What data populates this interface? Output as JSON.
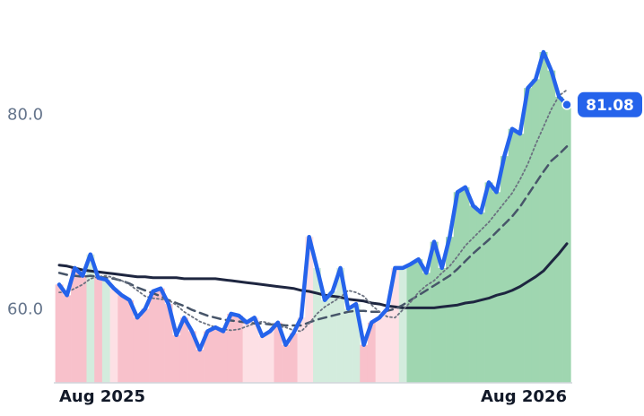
{
  "chart_data": {
    "type": "line",
    "categories": [
      "Aug 2025",
      null,
      null,
      null,
      null,
      null,
      null,
      null,
      null,
      null,
      null,
      null,
      null,
      null,
      null,
      null,
      null,
      null,
      null,
      null,
      null,
      null,
      null,
      null,
      null,
      null,
      null,
      null,
      null,
      null,
      null,
      null,
      null,
      null,
      null,
      null,
      null,
      null,
      null,
      null,
      null,
      null,
      null,
      null,
      null,
      null,
      null,
      null,
      null,
      null,
      null,
      null,
      null,
      null,
      null,
      null,
      null,
      null,
      null,
      null,
      null,
      null,
      null,
      null,
      null,
      "Aug 2026"
    ],
    "ylim": [
      52.5,
      90
    ],
    "yticks": [
      {
        "value": 60,
        "label": "60.0"
      },
      {
        "value": 80,
        "label": "80.0"
      }
    ],
    "band_colors": [
      "#f8c1cb",
      "#f8c1cb",
      "#f8c1cb",
      "#f8c1cb",
      "#d3ecdd",
      "#f8c1cb",
      "#d3ecdd",
      "#fde0e5",
      "#f8c1cb",
      "#f8c1cb",
      "#f8c1cb",
      "#f8c1cb",
      "#f8c1cb",
      "#f8c1cb",
      "#f8c1cb",
      "#f8c1cb",
      "#f8c1cb",
      "#f8c1cb",
      "#f8c1cb",
      "#f8c1cb",
      "#f8c1cb",
      "#f8c1cb",
      "#f8c1cb",
      "#f8c1cb",
      "#fde0e5",
      "#fde0e5",
      "#fde0e5",
      "#fde0e5",
      "#f8c1cb",
      "#f8c1cb",
      "#f8c1cb",
      "#fde0e5",
      "#fde0e5",
      "#d3ecdd",
      "#d3ecdd",
      "#d3ecdd",
      "#d3ecdd",
      "#d3ecdd",
      "#d3ecdd",
      "#f8c1cb",
      "#f8c1cb",
      "#fde0e5",
      "#fde0e5",
      "#fde0e5",
      "#d3ecdd",
      "#9fd6b0",
      "#9fd6b0",
      "#9fd6b0",
      "#9fd6b0",
      "#9fd6b0",
      "#9fd6b0",
      "#9fd6b0",
      "#9fd6b0",
      "#9fd6b0",
      "#9fd6b0",
      "#9fd6b0",
      "#9fd6b0",
      "#9fd6b0",
      "#9fd6b0",
      "#9fd6b0",
      "#9fd6b0",
      "#9fd6b0",
      "#9fd6b0",
      "#9fd6b0",
      "#9fd6b0",
      "#9fd6b0"
    ],
    "series": [
      {
        "color": "#2563eb",
        "style": "solid",
        "width": 4.5,
        "values": [
          62.6,
          61.5,
          64.3,
          63.5,
          65.7,
          63.3,
          63.1,
          62.2,
          61.5,
          61.0,
          59.2,
          60.1,
          61.9,
          62.2,
          60.6,
          57.4,
          59.2,
          57.8,
          55.9,
          57.8,
          58.2,
          57.8,
          59.6,
          59.4,
          58.7,
          59.2,
          57.3,
          57.8,
          58.7,
          56.4,
          57.6,
          59.2,
          67.5,
          64.3,
          61.0,
          61.9,
          64.3,
          60.1,
          60.6,
          56.4,
          58.7,
          59.2,
          60.1,
          64.3,
          64.3,
          64.7,
          65.2,
          63.8,
          67.0,
          64.3,
          67.5,
          72.1,
          72.6,
          70.7,
          70.0,
          73.1,
          72.1,
          75.8,
          78.6,
          78.1,
          82.8,
          83.7,
          86.5,
          84.6,
          81.9,
          81.08
        ]
      },
      {
        "color": "#6b7280",
        "style": "dotted",
        "width": 1.8,
        "values": [
          61.8,
          61.8,
          62.2,
          62.6,
          63.2,
          63.4,
          63.5,
          63.3,
          63.0,
          62.6,
          62.0,
          61.4,
          61.2,
          61.1,
          61.0,
          60.5,
          59.8,
          59.3,
          58.8,
          58.5,
          58.2,
          58.0,
          57.9,
          58.0,
          58.3,
          58.6,
          58.8,
          58.6,
          58.3,
          58.2,
          57.9,
          57.8,
          58.6,
          59.6,
          60.3,
          60.8,
          61.3,
          62.0,
          61.8,
          61.4,
          60.5,
          59.8,
          59.3,
          59.2,
          60.0,
          60.8,
          61.8,
          62.5,
          63.0,
          63.8,
          64.5,
          65.5,
          66.6,
          67.4,
          68.2,
          69.0,
          70.0,
          71.0,
          72.0,
          73.4,
          75.0,
          77.0,
          78.8,
          80.6,
          82.0,
          82.6
        ]
      },
      {
        "color": "#475569",
        "style": "dashed",
        "width": 2.5,
        "values": [
          63.8,
          63.6,
          63.5,
          63.4,
          63.5,
          63.4,
          63.3,
          63.2,
          63.0,
          62.7,
          62.3,
          62.0,
          61.7,
          61.4,
          61.0,
          60.7,
          60.4,
          60.0,
          59.7,
          59.4,
          59.2,
          59.0,
          58.9,
          58.8,
          58.7,
          58.6,
          58.6,
          58.5,
          58.5,
          58.4,
          58.4,
          58.4,
          58.7,
          59.0,
          59.2,
          59.4,
          59.6,
          59.8,
          59.9,
          59.9,
          59.8,
          59.8,
          59.9,
          60.1,
          60.5,
          61.0,
          61.5,
          62.0,
          62.5,
          63.0,
          63.5,
          64.2,
          65.0,
          65.8,
          66.5,
          67.2,
          68.0,
          68.8,
          69.6,
          70.6,
          71.8,
          73.0,
          74.2,
          75.3,
          76.0,
          76.8
        ]
      },
      {
        "color": "#1e2640",
        "style": "solid",
        "width": 3,
        "values": [
          64.6,
          64.5,
          64.3,
          64.1,
          64.0,
          63.9,
          63.8,
          63.7,
          63.6,
          63.5,
          63.4,
          63.4,
          63.3,
          63.3,
          63.3,
          63.3,
          63.2,
          63.2,
          63.2,
          63.2,
          63.2,
          63.1,
          63.0,
          62.9,
          62.8,
          62.7,
          62.6,
          62.5,
          62.4,
          62.3,
          62.2,
          62.0,
          61.9,
          61.7,
          61.5,
          61.4,
          61.3,
          61.1,
          61.0,
          60.9,
          60.7,
          60.6,
          60.4,
          60.3,
          60.2,
          60.2,
          60.2,
          60.2,
          60.2,
          60.3,
          60.4,
          60.5,
          60.7,
          60.8,
          61.0,
          61.2,
          61.5,
          61.7,
          62.0,
          62.4,
          62.9,
          63.4,
          64.0,
          64.9,
          65.8,
          66.8
        ]
      }
    ]
  }
}
